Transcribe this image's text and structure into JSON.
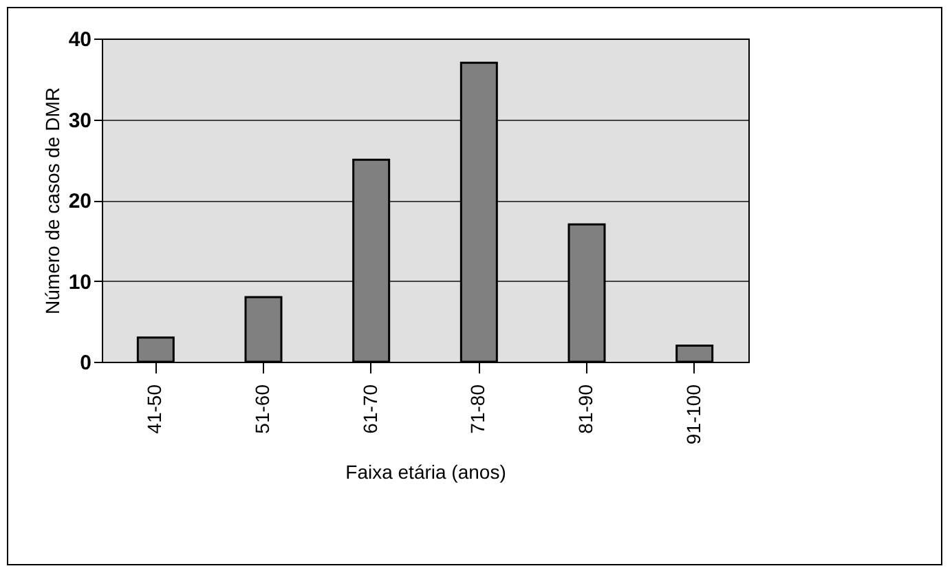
{
  "chart_data": {
    "type": "bar",
    "xlabel": "Faixa etária (anos)",
    "ylabel": "Número de casos de DMR",
    "categories": [
      "41-50",
      "51-60",
      "61-70",
      "71-80",
      "81-90",
      "91-100"
    ],
    "values": [
      3,
      8,
      25,
      37,
      17,
      2
    ],
    "color": "#808080",
    "ylim": [
      0,
      40
    ],
    "yticks": [
      0,
      10,
      20,
      30,
      40
    ],
    "grid": "y"
  }
}
